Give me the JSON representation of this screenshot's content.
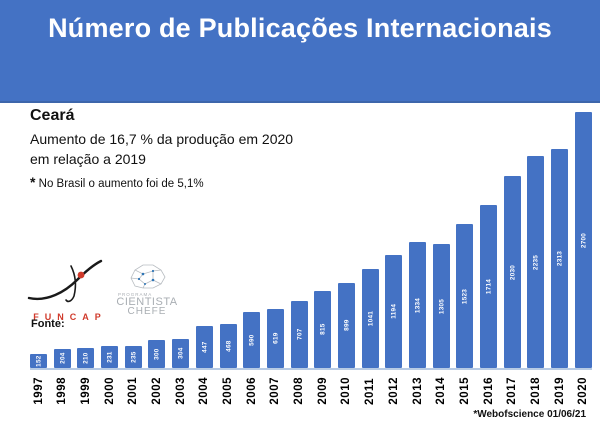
{
  "header": {
    "title": "Número de Publicações Internacionais"
  },
  "info": {
    "region": "Ceará",
    "line1": "Aumento de 16,7 % da produção em 2020",
    "line2": "em relação a 2019",
    "note_star": "*",
    "note": "No Brasil o aumento foi de 5,1%"
  },
  "source": {
    "label": "Fonte:",
    "funcap_label": "FUNCAP",
    "program_top": "PROGRAMA",
    "program_line1": "CIENTISTA",
    "program_line2": "CHEFE"
  },
  "footnote": "*Webofscience 01/06/21",
  "colors": {
    "banner_blue": "#4472c4",
    "bar_blue": "#4472c4",
    "axis_line": "#b8cbe4",
    "title_text": "#ffffff",
    "value_label": "#ffffff",
    "funcap_red": "#d03a2b",
    "cientista_gray": "#a9aeb3"
  },
  "chart_data": {
    "type": "bar",
    "title": "Número de Publicações Internacionais",
    "xlabel": "",
    "ylabel": "",
    "ylim": [
      0,
      2700
    ],
    "grid": false,
    "legend": false,
    "categories": [
      "1997",
      "1998",
      "1999",
      "2000",
      "2001",
      "2002",
      "2003",
      "2004",
      "2005",
      "2006",
      "2007",
      "2008",
      "2009",
      "2010",
      "2011",
      "2012",
      "2013",
      "2014",
      "2015",
      "2016",
      "2017",
      "2018",
      "2019",
      "2020"
    ],
    "values": [
      152,
      204,
      210,
      231,
      235,
      300,
      304,
      447,
      468,
      590,
      619,
      707,
      815,
      899,
      1041,
      1194,
      1334,
      1305,
      1523,
      1714,
      2030,
      2235,
      2313,
      2700
    ],
    "value_labels_inside_bars": true
  }
}
